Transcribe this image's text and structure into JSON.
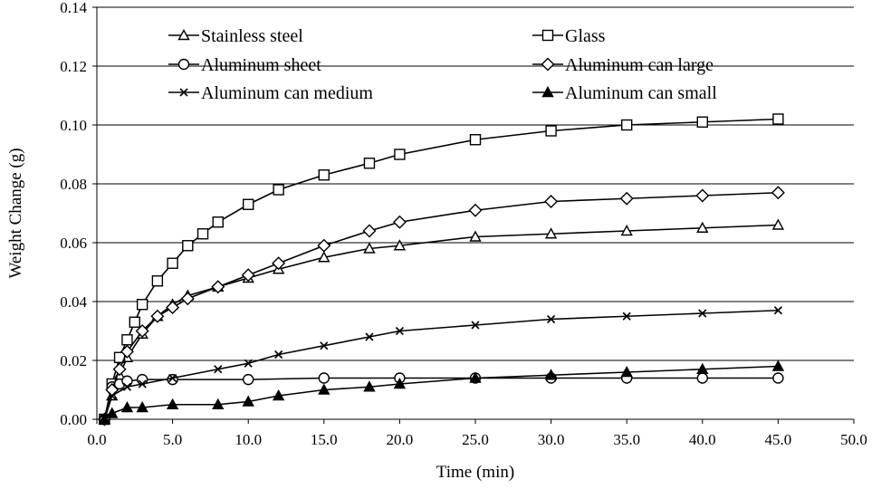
{
  "chart_data": {
    "type": "line",
    "title": "",
    "xlabel": "Time (min)",
    "ylabel": "Weight Change (g)",
    "xlim": [
      0,
      50
    ],
    "ylim": [
      0,
      0.14
    ],
    "xticks": [
      "0.0",
      "5.0",
      "10.0",
      "15.0",
      "20.0",
      "25.0",
      "30.0",
      "35.0",
      "40.0",
      "45.0",
      "50.0"
    ],
    "yticks": [
      "0.00",
      "0.02",
      "0.04",
      "0.06",
      "0.08",
      "0.10",
      "0.12",
      "0.14"
    ],
    "grid": "horizontal",
    "legend_position": "top",
    "line_color": "#000000",
    "series": [
      {
        "name": "Stainless steel",
        "marker": "open-triangle",
        "x": [
          0.5,
          1,
          1.5,
          2,
          3,
          4,
          5,
          6,
          8,
          10,
          12,
          15,
          18,
          20,
          25,
          30,
          35,
          40,
          45
        ],
        "y": [
          0.0,
          0.008,
          0.015,
          0.021,
          0.029,
          0.035,
          0.039,
          0.042,
          0.045,
          0.048,
          0.051,
          0.055,
          0.058,
          0.059,
          0.062,
          0.063,
          0.064,
          0.065,
          0.066
        ]
      },
      {
        "name": "Glass",
        "marker": "open-square",
        "x": [
          0.5,
          1,
          1.5,
          2,
          2.5,
          3,
          4,
          5,
          6,
          7,
          8,
          10,
          12,
          15,
          18,
          20,
          25,
          30,
          35,
          40,
          45
        ],
        "y": [
          0.0,
          0.012,
          0.021,
          0.027,
          0.033,
          0.039,
          0.047,
          0.053,
          0.059,
          0.063,
          0.067,
          0.073,
          0.078,
          0.083,
          0.087,
          0.09,
          0.095,
          0.098,
          0.1,
          0.101,
          0.102
        ]
      },
      {
        "name": "Aluminum sheet",
        "marker": "open-circle",
        "x": [
          0.5,
          1,
          1.5,
          2,
          3,
          5,
          10,
          15,
          20,
          25,
          30,
          35,
          40,
          45
        ],
        "y": [
          0.0,
          0.011,
          0.012,
          0.013,
          0.0135,
          0.0135,
          0.0135,
          0.014,
          0.014,
          0.014,
          0.014,
          0.014,
          0.014,
          0.014
        ]
      },
      {
        "name": "Aluminum can large",
        "marker": "open-diamond",
        "x": [
          0.5,
          1,
          1.5,
          2,
          3,
          4,
          5,
          6,
          8,
          10,
          12,
          15,
          18,
          20,
          25,
          30,
          35,
          40,
          45
        ],
        "y": [
          0.0,
          0.01,
          0.017,
          0.023,
          0.03,
          0.035,
          0.038,
          0.041,
          0.045,
          0.049,
          0.053,
          0.059,
          0.064,
          0.067,
          0.071,
          0.074,
          0.075,
          0.076,
          0.077
        ]
      },
      {
        "name": "Aluminum can medium",
        "marker": "x",
        "x": [
          0.5,
          1,
          2,
          3,
          5,
          8,
          10,
          12,
          15,
          18,
          20,
          25,
          30,
          35,
          40,
          45
        ],
        "y": [
          0.0,
          0.008,
          0.011,
          0.012,
          0.014,
          0.017,
          0.019,
          0.022,
          0.025,
          0.028,
          0.03,
          0.032,
          0.034,
          0.035,
          0.036,
          0.037
        ]
      },
      {
        "name": "Aluminum can small",
        "marker": "filled-triangle",
        "x": [
          0.5,
          1,
          2,
          3,
          5,
          8,
          10,
          12,
          15,
          18,
          20,
          25,
          30,
          35,
          40,
          45
        ],
        "y": [
          0.0,
          0.002,
          0.004,
          0.004,
          0.005,
          0.005,
          0.006,
          0.008,
          0.01,
          0.011,
          0.012,
          0.014,
          0.015,
          0.016,
          0.017,
          0.018
        ]
      }
    ]
  }
}
